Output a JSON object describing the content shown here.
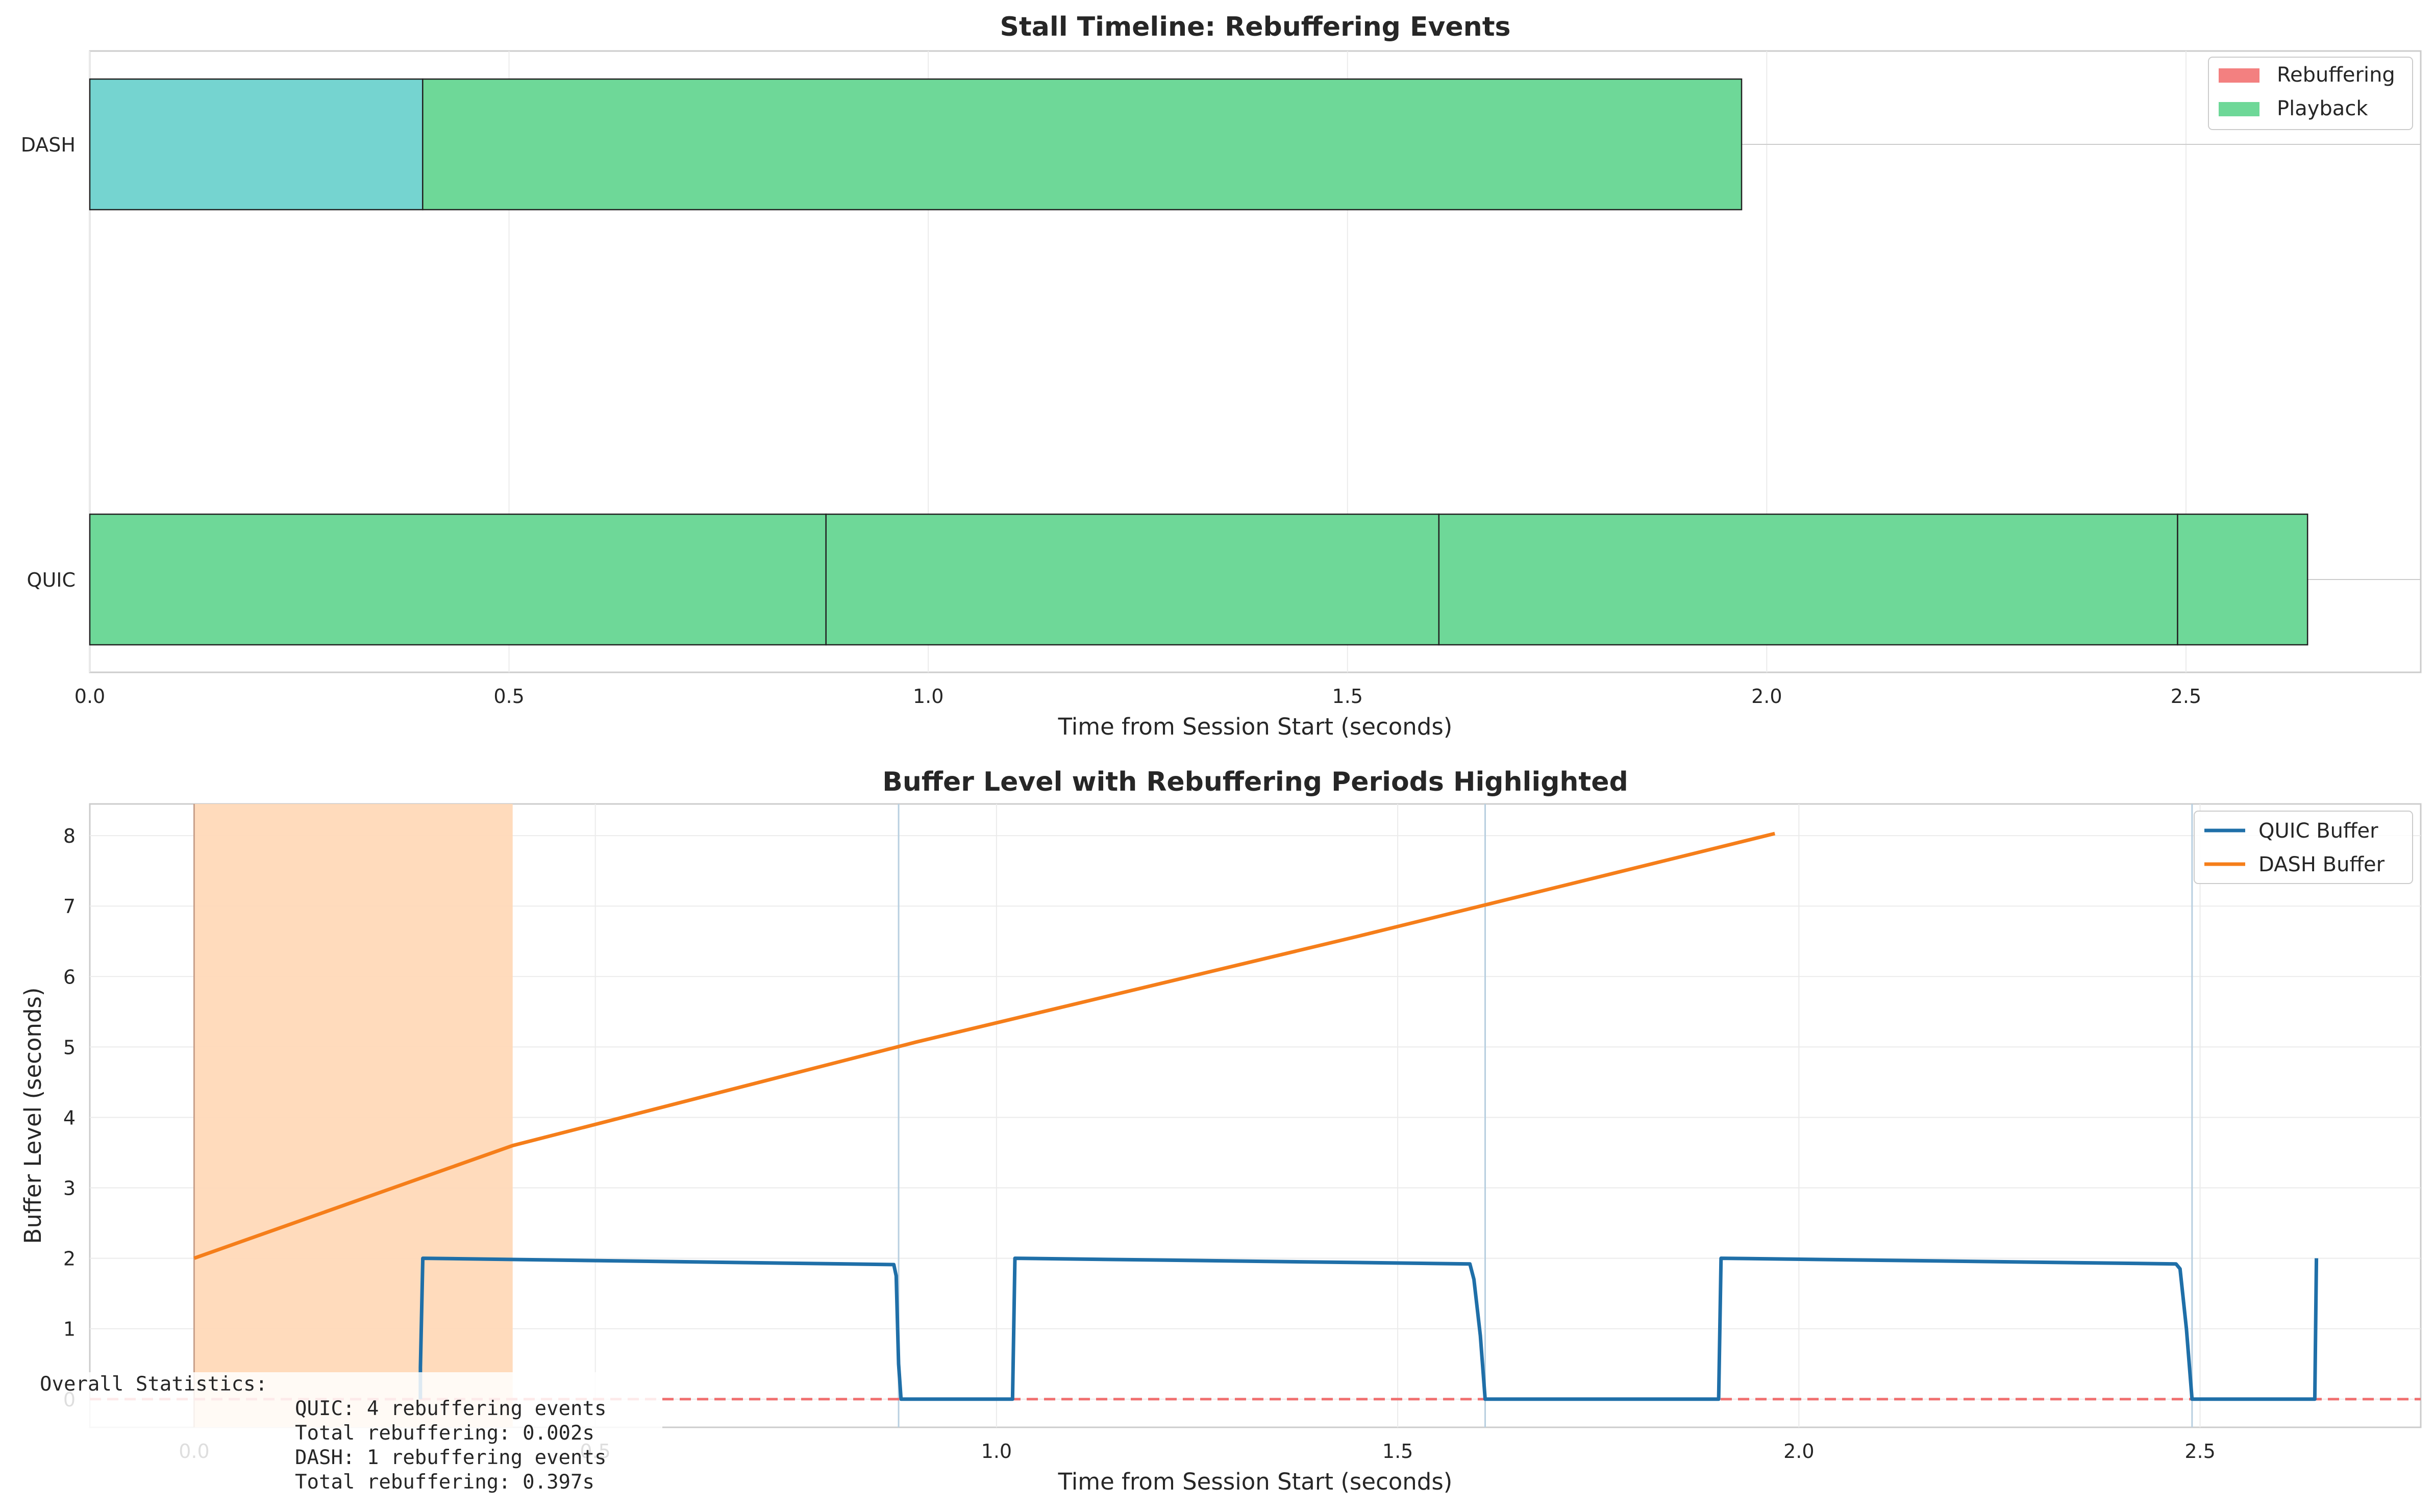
{
  "chart_data": [
    {
      "type": "timeline",
      "title": "Stall Timeline: Rebuffering Events",
      "xlabel": "Time from Session Start (seconds)",
      "ylabel": "",
      "xlim": [
        0.0,
        2.78
      ],
      "xticks": [
        0.0,
        0.5,
        1.0,
        1.5,
        2.0,
        2.5
      ],
      "xtick_labels": [
        "0.0",
        "0.5",
        "1.0",
        "1.5",
        "2.0",
        "2.5"
      ],
      "grid": true,
      "legend": {
        "placement": "top-right",
        "entries": [
          {
            "label": "Rebuffering",
            "color": "#f38080"
          },
          {
            "label": "Playback",
            "color": "#6ed898"
          }
        ]
      },
      "rows": [
        {
          "label": "DASH",
          "segments": [
            {
              "start": 0.0,
              "end": 0.397,
              "color": "#75d4d0"
            },
            {
              "start": 0.397,
              "end": 1.97,
              "color": "#6ed898"
            }
          ]
        },
        {
          "label": "QUIC",
          "segments": [
            {
              "start": 0.0,
              "end": 0.878,
              "color": "#6ed898"
            },
            {
              "start": 0.878,
              "end": 1.609,
              "color": "#6ed898"
            },
            {
              "start": 1.609,
              "end": 2.49,
              "color": "#6ed898"
            },
            {
              "start": 2.49,
              "end": 2.645,
              "color": "#6ed898"
            }
          ]
        }
      ]
    },
    {
      "type": "line",
      "title": "Buffer Level with Rebuffering Periods Highlighted",
      "xlabel": "Time from Session Start (seconds)",
      "ylabel": "Buffer Level (seconds)",
      "xlim": [
        -0.13,
        2.775
      ],
      "ylim": [
        -0.4,
        8.45
      ],
      "xticks": [
        0.0,
        0.5,
        1.0,
        1.5,
        2.0,
        2.5
      ],
      "xtick_labels": [
        "0.0",
        "0.5",
        "1.0",
        "1.5",
        "2.0",
        "2.5"
      ],
      "yticks": [
        0,
        1,
        2,
        3,
        4,
        5,
        6,
        7,
        8
      ],
      "ytick_labels": [
        "0",
        "1",
        "2",
        "3",
        "4",
        "5",
        "6",
        "7",
        "8"
      ],
      "grid": true,
      "legend": {
        "placement": "top-right"
      },
      "threshold_line": {
        "y": 0,
        "color": "#f07070",
        "style": "dashed"
      },
      "shaded_spans": [
        {
          "x0": 0.0,
          "x1": 0.397,
          "color": "#ffd9b8"
        }
      ],
      "event_lines": [
        {
          "x": 0.878
        },
        {
          "x": 1.609
        },
        {
          "x": 2.49
        }
      ],
      "series": [
        {
          "name": "QUIC Buffer",
          "color": "#1f6fa8",
          "x": [
            0.282,
            0.282,
            0.285,
            0.872,
            0.875,
            0.878,
            0.881,
            1.02,
            1.023,
            1.59,
            1.595,
            1.603,
            1.609,
            1.9,
            1.903,
            2.47,
            2.475,
            2.483,
            2.49,
            2.643,
            2.645
          ],
          "y": [
            0.0,
            0.45,
            2.0,
            1.91,
            1.75,
            0.5,
            0.0,
            0.0,
            2.0,
            1.92,
            1.7,
            0.9,
            0.0,
            0.0,
            2.0,
            1.92,
            1.85,
            1.0,
            0.0,
            0.0,
            2.0
          ]
        },
        {
          "name": "DASH Buffer",
          "color": "#f57e1a",
          "x": [
            0.0,
            0.397,
            0.9,
            1.45,
            1.97
          ],
          "y": [
            2.0,
            3.6,
            5.07,
            6.57,
            8.03
          ]
        }
      ]
    }
  ],
  "stats_box": {
    "heading": "Overall Statistics:",
    "lines": [
      "QUIC: 4 rebuffering events",
      "Total rebuffering: 0.002s",
      "DASH: 1 rebuffering events",
      "Total rebuffering: 0.397s"
    ]
  }
}
